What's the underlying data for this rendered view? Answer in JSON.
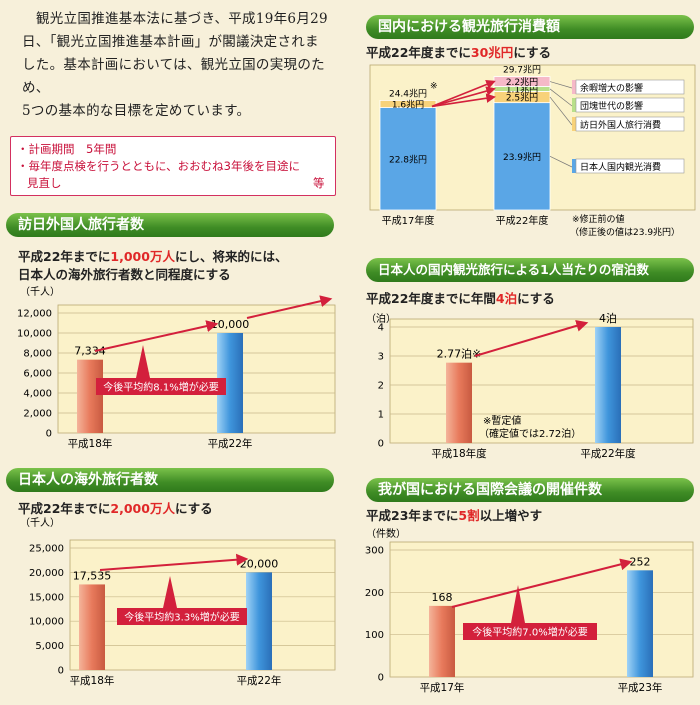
{
  "intro": {
    "lines": [
      "観光立国推進基本法に基づき、平成19年6月29",
      "日、「観光立国推進基本計画」が閣議決定されま",
      "した。基本計画においては、観光立国の実現のため、",
      "5つの基本的な目標を定めています。"
    ]
  },
  "notes": {
    "line1": "・計画期間　5年間",
    "line2": "・毎年度点検を行うとともに、おおむね3年後を目途に",
    "line3": "見直し",
    "line3_end": "等"
  },
  "colors": {
    "header_green": "#4a9a2a",
    "bar_orange": "#e8866a",
    "bar_blue": "#4a9ee0",
    "arrow_red": "#d3203c"
  },
  "chart_data": [
    {
      "id": "inbound",
      "type": "bar",
      "title": "訪日外国人旅行者数",
      "subtitle_prefix": "平成22年までに",
      "subtitle_highlight": "1,000万人",
      "subtitle_suffix": "にし、将来的には、",
      "subtitle_line2": "日本人の海外旅行者数と同程度にする",
      "ylabel": "（千人）",
      "categories": [
        "平成18年",
        "平成22年"
      ],
      "values": [
        7334,
        10000
      ],
      "value_labels": [
        "7,334",
        "10,000"
      ],
      "ylim": [
        0,
        12000
      ],
      "ticks": [
        0,
        2000,
        4000,
        6000,
        8000,
        10000,
        12000
      ],
      "tick_labels": [
        "0",
        "2,000",
        "4,000",
        "6,000",
        "8,000",
        "10,000",
        "12,000"
      ],
      "annotation": "今後平均約8.1%増が必要"
    },
    {
      "id": "outbound",
      "type": "bar",
      "title": "日本人の海外旅行者数",
      "subtitle_prefix": "平成22年までに",
      "subtitle_highlight": "2,000万人",
      "subtitle_suffix": "にする",
      "ylabel": "（千人）",
      "categories": [
        "平成18年",
        "平成22年"
      ],
      "values": [
        17535,
        20000
      ],
      "value_labels": [
        "17,535",
        "20,000"
      ],
      "ylim": [
        0,
        25000
      ],
      "ticks": [
        0,
        5000,
        10000,
        15000,
        20000,
        25000
      ],
      "tick_labels": [
        "0",
        "5,000",
        "10,000",
        "15,000",
        "20,000",
        "25,000"
      ],
      "annotation": "今後平均約3.3%増が必要"
    },
    {
      "id": "consumption",
      "type": "bar",
      "title": "国内における観光旅行消費額",
      "subtitle_prefix": "平成22年度までに",
      "subtitle_highlight": "30兆円",
      "subtitle_suffix": "にする",
      "categories": [
        "平成17年度",
        "平成22年度"
      ],
      "stacks": [
        [
          {
            "value": 22.8,
            "label": "22.8兆円"
          },
          {
            "value": 1.6,
            "label": "1.6兆円"
          }
        ],
        [
          {
            "value": 23.9,
            "label": "23.9兆円"
          },
          {
            "value": 2.5,
            "label": "2.5兆円"
          },
          {
            "value": 1.1,
            "label": "1.1兆円"
          },
          {
            "value": 2.2,
            "label": "2.2兆円"
          }
        ]
      ],
      "totals": [
        24.4,
        29.7
      ],
      "total_labels": [
        "24.4兆円",
        "29.7兆円"
      ],
      "asterisk": "※",
      "legend": [
        "余暇増大の影響",
        "団塊世代の影響",
        "訪日外国人旅行消費",
        "日本人国内観光消費"
      ],
      "note_line1": "※修正前の値",
      "note_line2": "（修正後の値は23.9兆円）"
    },
    {
      "id": "stays",
      "type": "bar",
      "title": "日本人の国内観光旅行による1人当たりの宿泊数",
      "subtitle_prefix": "平成22年度までに年間",
      "subtitle_highlight": "4泊",
      "subtitle_suffix": "にする",
      "ylabel": "（泊）",
      "categories": [
        "平成18年度",
        "平成22年度"
      ],
      "values": [
        2.77,
        4
      ],
      "value_labels": [
        "2.77泊※",
        "4泊"
      ],
      "ylim": [
        0,
        4
      ],
      "ticks": [
        0,
        1,
        2,
        3,
        4
      ],
      "tick_labels": [
        "0",
        "1",
        "2",
        "3",
        "4"
      ],
      "note_line1": "※暫定値",
      "note_line2": "（確定値では2.72泊）"
    },
    {
      "id": "conferences",
      "type": "bar",
      "title": "我が国における国際会議の開催件数",
      "subtitle_prefix": "平成23年までに",
      "subtitle_highlight": "5割",
      "subtitle_suffix": "以上増やす",
      "ylabel": "（件数）",
      "categories": [
        "平成17年",
        "平成23年"
      ],
      "values": [
        168,
        252
      ],
      "value_labels": [
        "168",
        "252"
      ],
      "ylim": [
        0,
        300
      ],
      "ticks": [
        0,
        100,
        200,
        300
      ],
      "tick_labels": [
        "0",
        "100",
        "200",
        "300"
      ],
      "annotation": "今後平均約7.0%増が必要"
    }
  ]
}
